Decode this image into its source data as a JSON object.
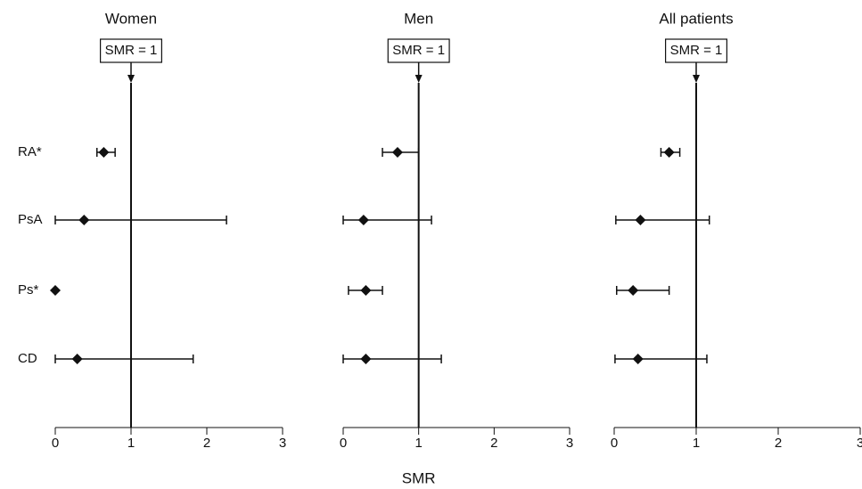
{
  "chart_data": [
    {
      "type": "forest",
      "title": "Women",
      "annotation": "SMR = 1",
      "reference": 1,
      "categories": [
        "RA*",
        "PsA",
        "Ps*",
        "CD"
      ],
      "values": [
        0.64,
        0.38,
        0,
        0.29
      ],
      "lower": [
        0.55,
        0,
        null,
        0
      ],
      "upper": [
        0.79,
        2.26,
        null,
        1.82
      ],
      "xlim": [
        0,
        3
      ],
      "xticks": [
        0,
        1,
        2,
        3
      ],
      "color": "#111111"
    },
    {
      "type": "forest",
      "title": "Men",
      "annotation": "SMR = 1",
      "reference": 1,
      "xlabel": "SMR",
      "values": [
        0.72,
        0.27,
        0.3,
        0.3
      ],
      "lower": [
        0.52,
        0,
        0.07,
        0
      ],
      "upper": [
        1.0,
        1.17,
        0.52,
        1.3
      ],
      "xlim": [
        0,
        3
      ],
      "xticks": [
        0,
        1,
        2,
        3
      ],
      "color": "#111111"
    },
    {
      "type": "forest",
      "title": "All patients",
      "annotation": "SMR = 1",
      "reference": 1,
      "values": [
        0.67,
        0.32,
        0.23,
        0.29
      ],
      "lower": [
        0.57,
        0.02,
        0.03,
        0.01
      ],
      "upper": [
        0.8,
        1.16,
        0.67,
        1.13
      ],
      "xlim": [
        0,
        3
      ],
      "xticks": [
        0,
        1,
        2,
        3
      ],
      "color": "#111111"
    }
  ]
}
